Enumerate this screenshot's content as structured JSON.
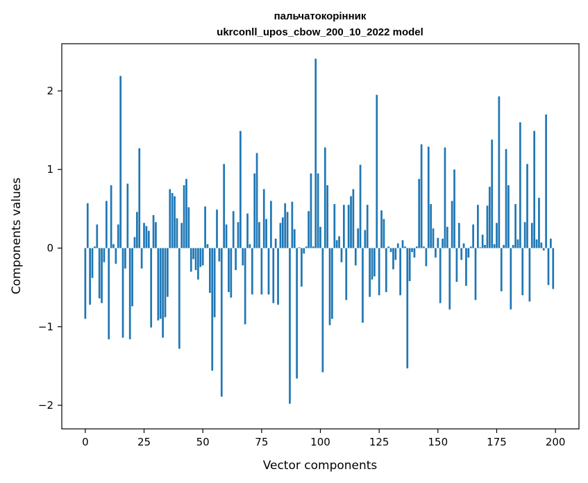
{
  "chart_data": {
    "type": "bar",
    "title": "пальчатокорінник",
    "subtitle": "ukrconll_upos_cbow_200_10_2022 model",
    "xlabel": "Vector components",
    "ylabel": "Components values",
    "xlim": [
      -10,
      210
    ],
    "ylim": [
      -2.3,
      2.6
    ],
    "xticks": [
      0,
      25,
      50,
      75,
      100,
      125,
      150,
      175,
      200
    ],
    "yticks": [
      -2,
      -1,
      0,
      1,
      2
    ],
    "ytick_labels": [
      "−2",
      "−1",
      "0",
      "1",
      "2"
    ],
    "grid": false,
    "color": "#1f77b4",
    "values": [
      -0.9,
      0.57,
      -0.72,
      -0.38,
      0.02,
      0.3,
      -0.64,
      -0.7,
      -0.18,
      0.6,
      -1.16,
      0.8,
      0.05,
      -0.2,
      0.3,
      2.19,
      -1.14,
      -0.26,
      0.82,
      -1.16,
      -0.74,
      0.14,
      0.46,
      1.27,
      -0.26,
      0.32,
      0.28,
      0.22,
      -1.01,
      0.42,
      0.33,
      -0.92,
      -0.9,
      -1.14,
      -0.88,
      -0.62,
      0.75,
      0.7,
      0.66,
      0.38,
      -1.28,
      0.32,
      0.8,
      0.88,
      0.52,
      -0.3,
      -0.14,
      -0.28,
      -0.4,
      -0.24,
      -0.22,
      0.53,
      0.05,
      -0.57,
      -1.56,
      -0.88,
      0.49,
      -0.17,
      -1.89,
      1.07,
      0.3,
      -0.56,
      -0.63,
      0.47,
      -0.28,
      0.33,
      1.49,
      -0.22,
      -0.97,
      0.44,
      0.05,
      -0.59,
      0.95,
      1.21,
      0.33,
      -0.59,
      0.75,
      0.37,
      -0.59,
      0.6,
      -0.7,
      0.12,
      -0.72,
      0.32,
      0.39,
      0.57,
      0.46,
      -1.98,
      0.59,
      0.24,
      -1.66,
      0.01,
      -0.49,
      -0.07,
      0.02,
      0.47,
      0.95,
      0.02,
      2.41,
      0.95,
      0.27,
      -1.58,
      1.28,
      0.8,
      -0.98,
      -0.9,
      0.56,
      0.1,
      0.15,
      -0.18,
      0.55,
      -0.66,
      0.55,
      0.66,
      0.75,
      -0.22,
      0.25,
      1.06,
      -0.95,
      0.23,
      0.55,
      -0.62,
      -0.4,
      -0.36,
      1.95,
      -0.6,
      0.48,
      0.37,
      -0.56,
      0.02,
      -0.05,
      -0.27,
      -0.15,
      0.06,
      -0.6,
      0.1,
      0.02,
      -1.53,
      -0.42,
      -0.05,
      -0.12,
      0.02,
      0.88,
      1.32,
      0.02,
      -0.23,
      1.29,
      0.56,
      0.25,
      -0.12,
      0.13,
      -0.7,
      0.12,
      1.28,
      0.27,
      -0.78,
      0.6,
      1.0,
      -0.43,
      0.32,
      -0.15,
      0.06,
      -0.48,
      -0.12,
      0.02,
      0.3,
      -0.66,
      0.55,
      0.01,
      0.17,
      0.04,
      0.54,
      0.78,
      1.38,
      0.05,
      0.32,
      1.93,
      -0.55,
      0.04,
      1.26,
      0.8,
      -0.78,
      0.04,
      0.56,
      0.11,
      1.6,
      -0.6,
      0.33,
      1.07,
      -0.68,
      0.32,
      1.49,
      0.11,
      0.64,
      0.07,
      -0.03,
      1.7,
      -0.47,
      0.12,
      -0.52
    ]
  }
}
